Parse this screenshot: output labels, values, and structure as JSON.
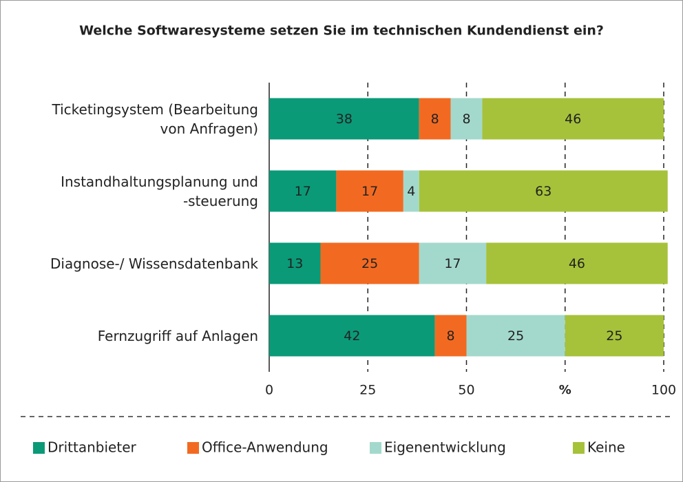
{
  "chart_data": {
    "type": "stacked-bar-horizontal",
    "title": "Welche Softwaresysteme setzen Sie im technischen Kundendienst ein?",
    "categories": [
      "Ticketingsystem (Bearbeitung\nvon Anfragen)",
      "Instandhaltungsplanung und\n-steuerung",
      "Diagnose-/ Wissensdatenbank",
      "Fernzugriff auf Anlagen"
    ],
    "series": [
      {
        "name": "Drittanbieter",
        "color": "#0a9a78",
        "values": [
          38,
          17,
          13,
          42
        ]
      },
      {
        "name": "Office-Anwendung",
        "color": "#f26a21",
        "values": [
          8,
          17,
          25,
          8
        ]
      },
      {
        "name": "Eigenentwicklung",
        "color": "#a3d9cc",
        "values": [
          8,
          4,
          17,
          25
        ]
      },
      {
        "name": "Keine",
        "color": "#a6c23a",
        "values": [
          46,
          63,
          46,
          25
        ]
      }
    ],
    "xlim": [
      0,
      100
    ],
    "xticks": [
      0,
      25,
      50,
      {
        "value": 75,
        "label": "%"
      },
      100
    ],
    "grid": true,
    "legend": "bottom"
  }
}
